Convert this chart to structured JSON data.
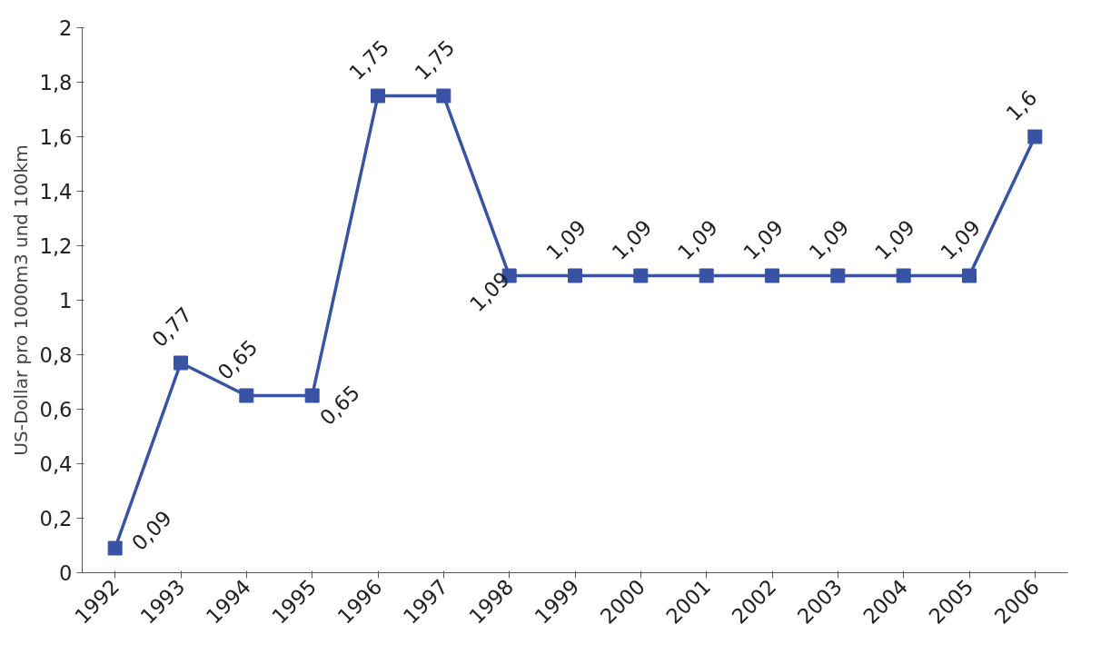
{
  "chart_data": {
    "type": "line",
    "ylabel": "US-Dollar pro 1000m3 und 100km",
    "categories": [
      "1992",
      "1993",
      "1994",
      "1995",
      "1996",
      "1997",
      "1998",
      "1999",
      "2000",
      "2001",
      "2002",
      "2003",
      "2004",
      "2005",
      "2006"
    ],
    "series": [
      {
        "color": "#3953a4",
        "values": [
          0.09,
          0.77,
          0.65,
          0.65,
          1.75,
          1.75,
          1.09,
          1.09,
          1.09,
          1.09,
          1.09,
          1.09,
          1.09,
          1.09,
          1.6
        ],
        "value_labels": [
          "0,09",
          "0,77",
          "0,65",
          "0,65",
          "1,75",
          "1,75",
          "1,09",
          "1,09",
          "1,09",
          "1,09",
          "1,09",
          "1,09",
          "1,09",
          "1,09",
          "1,6"
        ]
      }
    ],
    "ylim": [
      0,
      2
    ],
    "yticks": [
      0,
      {
        "value": 0.2,
        "label": "0,2"
      },
      {
        "value": 0.4,
        "label": "0,4"
      },
      {
        "value": 0.6,
        "label": "0,6"
      },
      {
        "value": 0.8,
        "label": "0,8"
      },
      1,
      {
        "value": 1.2,
        "label": "1,2"
      },
      {
        "value": 1.4,
        "label": "1,4"
      },
      {
        "value": 1.6,
        "label": "1,6"
      },
      {
        "value": 1.8,
        "label": "1,8"
      },
      2
    ],
    "grid": false,
    "marker": "square",
    "line_style": "solid"
  }
}
